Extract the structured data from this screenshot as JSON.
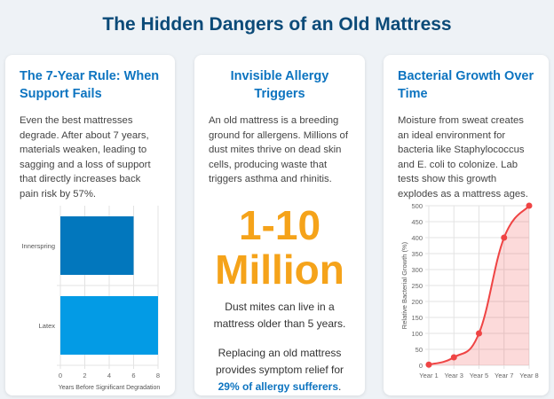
{
  "title": "The Hidden Dangers of an Old Mattress",
  "cards": [
    {
      "heading": "The 7-Year Rule: When Support Fails",
      "text": "Even the best mattresses degrade. After about 7 years, materials weaken, leading to sagging and a loss of support that directly increases back pain risk by 57%."
    },
    {
      "heading": "Invisible Allergy Triggers",
      "text": "An old mattress is a breeding ground for allergens. Millions of dust mites thrive on dead skin cells, producing waste that triggers asthma and rhinitis.",
      "big_line1": "1-10",
      "big_line2": "Million",
      "stat_caption": "Dust mites can live in a mattress older than 5 years.",
      "relief_prefix": "Replacing an old mattress provides symptom relief for ",
      "relief_highlight": "29% of allergy sufferers",
      "relief_suffix": "."
    },
    {
      "heading": "Bacterial Growth Over Time",
      "text": "Moisture from sweat creates an ideal environment for bacteria like Staphylococcus and E. coli to colonize. Lab tests show this growth explodes as a mattress ages."
    }
  ],
  "chart_data": [
    {
      "type": "bar",
      "orientation": "horizontal",
      "categories": [
        "Innerspring",
        "Latex"
      ],
      "values": [
        6,
        8
      ],
      "colors": [
        "#0277bd",
        "#039be5"
      ],
      "xlabel": "Years Before Significant Degradation",
      "xlim": [
        0,
        8
      ],
      "xticks": [
        "0",
        "2",
        "4",
        "6",
        "8"
      ],
      "grid": true
    },
    {
      "type": "area",
      "categories": [
        "Year 1",
        "Year 3",
        "Year 5",
        "Year 7",
        "Year 8"
      ],
      "values": [
        2,
        25,
        100,
        400,
        500
      ],
      "color": "#ef4444",
      "fill": "rgba(239,68,68,0.2)",
      "ylabel": "Relative Bacterial Growth (%)",
      "ylim": [
        0,
        500
      ],
      "yticks": [
        "0",
        "50",
        "100",
        "150",
        "200",
        "250",
        "300",
        "350",
        "400",
        "450",
        "500"
      ],
      "grid": true
    }
  ]
}
